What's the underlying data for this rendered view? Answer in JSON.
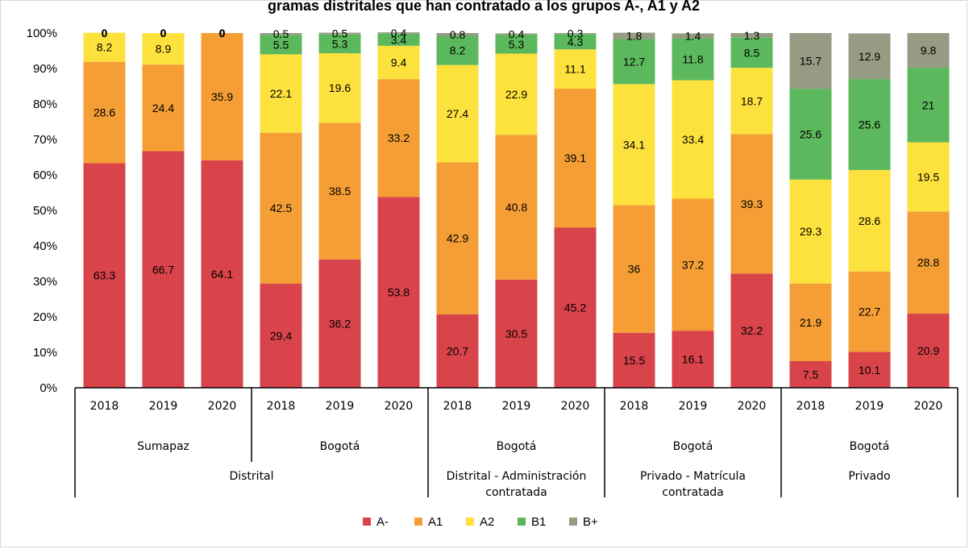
{
  "chart_data": {
    "type": "bar",
    "stacked": true,
    "percent": true,
    "title": "gramas distritales que han contratado a los grupos A-, A1 y A2",
    "ylim": [
      0,
      100
    ],
    "y_ticks": [
      "0%",
      "10%",
      "20%",
      "30%",
      "40%",
      "50%",
      "60%",
      "70%",
      "80%",
      "90%",
      "100%"
    ],
    "grid": false,
    "legend_position": "bottom",
    "categories": [
      "2018",
      "2019",
      "2020",
      "2018",
      "2019",
      "2020",
      "2018",
      "2019",
      "2020",
      "2018",
      "2019",
      "2020",
      "2018",
      "2019",
      "2020"
    ],
    "group_level_1": [
      {
        "label": "Sumapaz",
        "span": 3
      },
      {
        "label": "Bogotá",
        "span": 3
      },
      {
        "label": "Bogotá",
        "span": 3
      },
      {
        "label": "Bogotá",
        "span": 3
      },
      {
        "label": "Bogotá",
        "span": 3
      }
    ],
    "group_level_2": [
      {
        "label": "Distrital",
        "span": 6
      },
      {
        "label": "Distrital - Administración contratada",
        "span": 3
      },
      {
        "label": "Privado - Matrícula contratada",
        "span": 3
      },
      {
        "label": "Privado",
        "span": 3
      }
    ],
    "series": [
      {
        "name": "A-",
        "color": "#d9434a",
        "values": [
          63.3,
          66.7,
          64.1,
          29.4,
          36.2,
          53.8,
          20.7,
          30.5,
          45.2,
          15.5,
          16.1,
          32.2,
          7.5,
          10.1,
          20.9
        ]
      },
      {
        "name": "A1",
        "color": "#f49e35",
        "values": [
          28.6,
          24.4,
          35.9,
          42.5,
          38.5,
          33.2,
          42.9,
          40.8,
          39.1,
          36,
          37.2,
          39.3,
          21.9,
          22.7,
          28.8
        ]
      },
      {
        "name": "A2",
        "color": "#fde23e",
        "values": [
          8.2,
          8.9,
          0,
          22.1,
          19.6,
          9.4,
          27.4,
          22.9,
          11.1,
          34.1,
          33.4,
          18.7,
          29.3,
          28.6,
          19.5
        ]
      },
      {
        "name": "B1",
        "color": "#5cb85c",
        "values": [
          0,
          0,
          0,
          5.5,
          5.3,
          3.4,
          8.2,
          5.3,
          4.3,
          12.7,
          11.8,
          8.5,
          25.6,
          25.6,
          21
        ]
      },
      {
        "name": "B+",
        "color": "#959c83",
        "values": [
          0,
          0,
          0,
          0.5,
          0.5,
          0.4,
          0.8,
          0.4,
          0.3,
          1.8,
          1.4,
          1.3,
          15.7,
          12.9,
          9.8
        ]
      }
    ]
  }
}
